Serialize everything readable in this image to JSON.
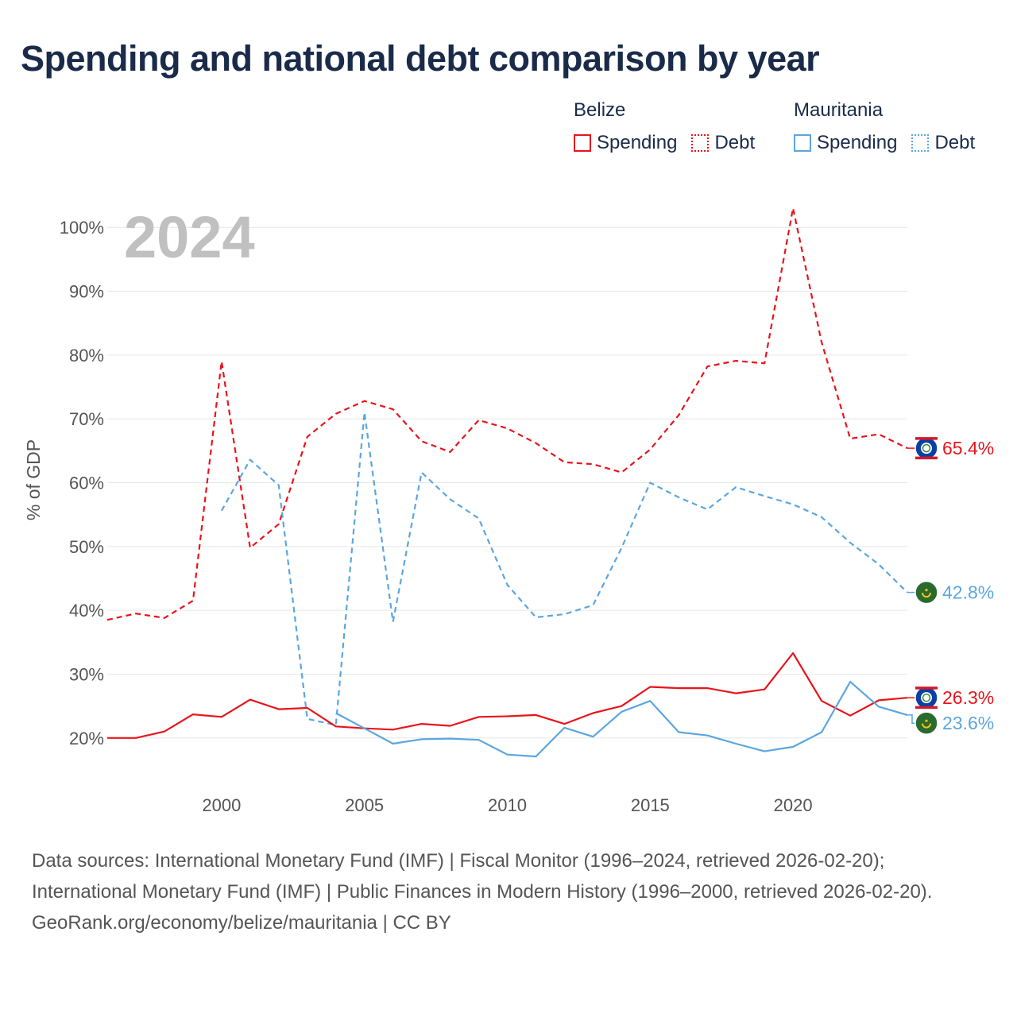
{
  "title": "Spending and national debt comparison by year",
  "legend": {
    "groups": [
      {
        "country": "Belize",
        "color": "#e8141c",
        "items": [
          {
            "label": "Spending",
            "style": "solid"
          },
          {
            "label": "Debt",
            "style": "dotted"
          }
        ]
      },
      {
        "country": "Mauritania",
        "color": "#5ba6e0",
        "items": [
          {
            "label": "Spending",
            "style": "solid"
          },
          {
            "label": "Debt",
            "style": "dotted"
          }
        ]
      }
    ]
  },
  "chart_data": {
    "type": "line",
    "year_label": "2024",
    "ylabel": "% of GDP",
    "xlabel": "",
    "xlim": [
      1996,
      2024
    ],
    "ylim": [
      13,
      107
    ],
    "x_ticks": [
      2000,
      2005,
      2010,
      2015,
      2020
    ],
    "y_ticks": [
      20,
      30,
      40,
      50,
      60,
      70,
      80,
      90,
      100
    ],
    "y_tick_labels": [
      "20%",
      "30%",
      "40%",
      "50%",
      "60%",
      "70%",
      "80%",
      "90%",
      "100%"
    ],
    "grid": true,
    "x": [
      1996,
      1997,
      1998,
      1999,
      2000,
      2001,
      2002,
      2003,
      2004,
      2005,
      2006,
      2007,
      2008,
      2009,
      2010,
      2011,
      2012,
      2013,
      2014,
      2015,
      2016,
      2017,
      2018,
      2019,
      2020,
      2021,
      2022,
      2023,
      2024
    ],
    "series": [
      {
        "name": "Belize Debt",
        "country": "Belize",
        "color": "#e8141c",
        "dashed": true,
        "values": [
          38.5,
          39.5,
          38.8,
          41.5,
          79,
          49.8,
          53.5,
          67.2,
          70.8,
          72.8,
          71.5,
          66.5,
          64.8,
          69.8,
          68.5,
          66.2,
          63.2,
          62.9,
          61.6,
          65.2,
          70.6,
          78.2,
          79.1,
          78.7,
          103,
          82,
          66.9,
          67.6,
          65.4
        ],
        "end_label": "65.4%"
      },
      {
        "name": "Mauritania Debt",
        "country": "Mauritania",
        "color": "#5ba6e0",
        "dashed": true,
        "values": [
          null,
          null,
          null,
          null,
          55.6,
          63.6,
          59.6,
          23.0,
          22.0,
          71.0,
          38.2,
          61.6,
          57.4,
          54.4,
          44.0,
          38.9,
          39.4,
          40.8,
          49.8,
          60.0,
          57.7,
          55.8,
          59.3,
          57.9,
          56.6,
          54.6,
          50.6,
          47.2,
          42.8
        ],
        "end_label": "42.8%"
      },
      {
        "name": "Belize Spending",
        "country": "Belize",
        "color": "#e8141c",
        "dashed": false,
        "values": [
          20.0,
          20.0,
          21.0,
          23.7,
          23.3,
          26.0,
          24.5,
          24.7,
          21.8,
          21.5,
          21.3,
          22.2,
          21.9,
          23.3,
          23.4,
          23.6,
          22.2,
          23.9,
          25.0,
          28.0,
          27.8,
          27.8,
          27.0,
          27.6,
          33.3,
          25.8,
          23.5,
          25.9,
          26.3
        ],
        "end_label": "26.3%"
      },
      {
        "name": "Mauritania Spending",
        "country": "Mauritania",
        "color": "#5ba6e0",
        "dashed": false,
        "values": [
          null,
          null,
          null,
          null,
          null,
          null,
          null,
          null,
          23.9,
          21.5,
          19.1,
          19.8,
          19.9,
          19.7,
          17.4,
          17.1,
          21.6,
          20.2,
          24.1,
          25.8,
          20.9,
          20.4,
          19.1,
          17.9,
          18.6,
          20.9,
          28.8,
          24.9,
          23.6
        ],
        "end_label": "23.6%"
      }
    ]
  },
  "footer": {
    "sources": "Data sources: International Monetary Fund (IMF) | Fiscal Monitor (1996–2024, retrieved 2026-02-20); International Monetary Fund (IMF) | Public Finances in Modern History (1996–2000, retrieved 2026-02-20).",
    "credit": "GeoRank.org/economy/belize/mauritania | CC BY"
  }
}
